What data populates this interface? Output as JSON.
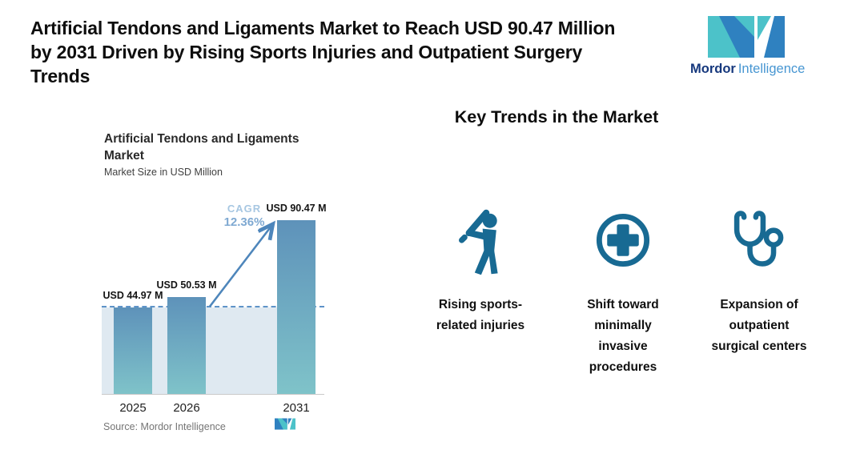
{
  "header": {
    "title": "Artificial Tendons and Ligaments Market to Reach USD 90.47 Million by 2031 Driven by Rising Sports Injuries and Outpatient Surgery Trends",
    "title_lines": [
      "Artificial Tendons and Ligaments Market to Reach USD 90.47 Million",
      "by 2031 Driven by Rising Sports Injuries and Outpatient Surgery",
      "Trends"
    ],
    "brand": {
      "name_bold": "Mordor",
      "name_light": "Intelligence"
    }
  },
  "chart": {
    "title": "Artificial Tendons and Ligaments Market",
    "subtitle": "Market Size in USD Million",
    "cagr_label": "CAGR",
    "cagr_value": "12.36%",
    "source": "Source: Mordor Intelligence"
  },
  "chart_data": {
    "type": "bar",
    "title": "Artificial Tendons and Ligaments Market",
    "ylabel": "Market Size in USD Million",
    "categories": [
      "2025",
      "2026",
      "2031"
    ],
    "values": [
      44.97,
      50.53,
      90.47
    ],
    "bar_labels": [
      "USD 44.97 M",
      "USD 50.53 M",
      "USD 90.47 M"
    ],
    "cagr_percent": 12.36,
    "reference_line_at": 44.97,
    "grid": false,
    "legend": false
  },
  "key_trends": {
    "heading": "Key Trends in the Market",
    "items": [
      {
        "icon": "baseball-batter-icon",
        "label": "Rising sports-related injuries"
      },
      {
        "icon": "medical-cross-icon",
        "label": "Shift toward minimally invasive procedures"
      },
      {
        "icon": "stethoscope-icon",
        "label": "Expansion of outpatient surgical centers"
      }
    ]
  },
  "colors": {
    "icon_blue": "#186a93",
    "bar_top": "#5e92ba",
    "bar_bottom": "#7fc3c9",
    "band_fill": "#dfe9f1",
    "dashed_line": "#5e93c8",
    "arrow": "#4e86bb",
    "cagr_label_text": "#a7c7e2",
    "cagr_value_text": "#7fa9d2",
    "logo_teal": "#4cc2c9",
    "logo_blue": "#2f81c0",
    "brand_navy": "#16387d",
    "brand_blue": "#4796d2",
    "source_text": "#757575",
    "axis_line": "#c9c9c9",
    "title_text": "#0e0e0e"
  }
}
